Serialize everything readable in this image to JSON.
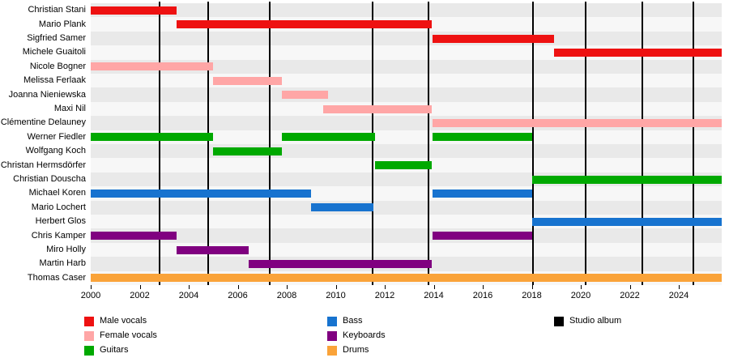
{
  "chart_data": {
    "type": "timeline",
    "x_axis": {
      "min": 2000,
      "max": 2025.75,
      "ticks": [
        2000,
        2002,
        2004,
        2006,
        2008,
        2010,
        2012,
        2014,
        2016,
        2018,
        2020,
        2022,
        2024
      ]
    },
    "roles": {
      "Male vocals": "#ee1111",
      "Female vocals": "#ffa6a6",
      "Guitars": "#00a900",
      "Bass": "#1773cf",
      "Keyboards": "#800080",
      "Drums": "#faa339"
    },
    "album_color": "#000000",
    "albums": [
      2002.8,
      2004.8,
      2007.3,
      2011.5,
      2013.8,
      2018.05,
      2020.2,
      2022.5,
      2024.6
    ],
    "members": [
      {
        "name": "Christian Stani",
        "role": "Male vocals",
        "segments": [
          [
            2000,
            2003.5
          ]
        ]
      },
      {
        "name": "Mario Plank",
        "role": "Male vocals",
        "segments": [
          [
            2003.5,
            2013.9
          ]
        ]
      },
      {
        "name": "Sigfried Samer",
        "role": "Male vocals",
        "segments": [
          [
            2013.95,
            2018.9
          ]
        ]
      },
      {
        "name": "Michele Guaitoli",
        "role": "Male vocals",
        "segments": [
          [
            2018.9,
            2025.75
          ]
        ]
      },
      {
        "name": "Nicole Bogner",
        "role": "Female vocals",
        "segments": [
          [
            2000,
            2005.0
          ]
        ]
      },
      {
        "name": "Melissa Ferlaak",
        "role": "Female vocals",
        "segments": [
          [
            2005.0,
            2007.8
          ]
        ]
      },
      {
        "name": "Joanna Nieniewska",
        "role": "Female vocals",
        "segments": [
          [
            2007.8,
            2009.7
          ]
        ]
      },
      {
        "name": "Maxi Nil",
        "role": "Female vocals",
        "segments": [
          [
            2009.5,
            2013.9
          ]
        ]
      },
      {
        "name": "Clémentine Delauney",
        "role": "Female vocals",
        "segments": [
          [
            2013.95,
            2025.75
          ]
        ]
      },
      {
        "name": "Werner Fiedler",
        "role": "Guitars",
        "segments": [
          [
            2000,
            2005.0
          ],
          [
            2007.8,
            2011.6
          ],
          [
            2013.95,
            2018.0
          ]
        ]
      },
      {
        "name": "Wolfgang Koch",
        "role": "Guitars",
        "segments": [
          [
            2005.0,
            2007.8
          ]
        ]
      },
      {
        "name": "Christan Hermsdörfer",
        "role": "Guitars",
        "segments": [
          [
            2011.6,
            2013.9
          ]
        ]
      },
      {
        "name": "Christian Douscha",
        "role": "Guitars",
        "segments": [
          [
            2018.0,
            2025.75
          ]
        ]
      },
      {
        "name": "Michael Koren",
        "role": "Bass",
        "segments": [
          [
            2000,
            2009.0
          ],
          [
            2013.95,
            2018.0
          ]
        ]
      },
      {
        "name": "Mario Lochert",
        "role": "Bass",
        "segments": [
          [
            2009.0,
            2011.55
          ]
        ]
      },
      {
        "name": "Herbert Glos",
        "role": "Bass",
        "segments": [
          [
            2018.0,
            2025.75
          ]
        ]
      },
      {
        "name": "Chris Kamper",
        "role": "Keyboards",
        "segments": [
          [
            2000,
            2003.5
          ],
          [
            2013.95,
            2018.0
          ]
        ]
      },
      {
        "name": "Miro Holly",
        "role": "Keyboards",
        "segments": [
          [
            2003.5,
            2006.45
          ]
        ]
      },
      {
        "name": "Martin Harb",
        "role": "Keyboards",
        "segments": [
          [
            2006.45,
            2013.9
          ]
        ]
      },
      {
        "name": "Thomas Caser",
        "role": "Drums",
        "segments": [
          [
            2000,
            2025.75
          ]
        ]
      }
    ],
    "legend": {
      "columns": [
        [
          "Male vocals",
          "Female vocals",
          "Guitars"
        ],
        [
          "Bass",
          "Keyboards",
          "Drums"
        ],
        [
          "Studio album"
        ]
      ]
    },
    "stripe_colors": [
      "#e9e9e9",
      "#f7f7f7"
    ]
  }
}
